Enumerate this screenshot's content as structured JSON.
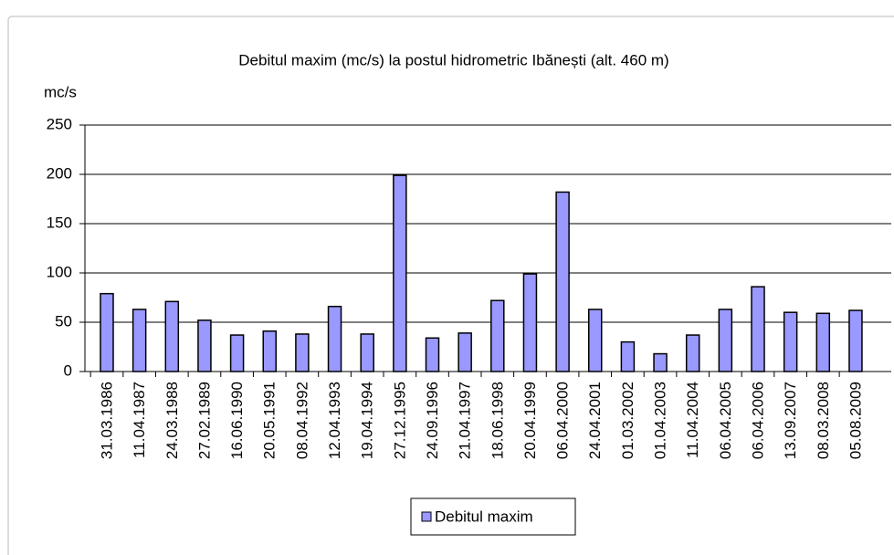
{
  "chart_data": {
    "type": "bar",
    "title": "Debitul maxim (mc/s) la postul hidrometric Ibănești (alt. 460 m)",
    "y_label": "mc/s",
    "categories": [
      "31.03.1986",
      "11.04.1987",
      "24.03.1988",
      "27.02.1989",
      "16.06.1990",
      "20.05.1991",
      "08.04.1992",
      "12.04.1993",
      "19.04.1994",
      "27.12.1995",
      "24.09.1996",
      "21.04.1997",
      "18.06.1998",
      "20.04.1999",
      "06.04.2000",
      "24.04.2001",
      "01.03.2002",
      "01.04.2003",
      "11.04.2004",
      "06.04.2005",
      "06.04.2006",
      "13.09.2007",
      "08.03.2008",
      "05.08.2009"
    ],
    "series": [
      {
        "name": "Debitul maxim",
        "color": "#9999ff",
        "values": [
          79,
          63,
          71,
          52,
          37,
          41,
          38,
          66,
          38,
          199,
          34,
          39,
          72,
          99,
          182,
          63,
          30,
          18,
          37,
          63,
          86,
          60,
          59,
          62
        ]
      }
    ],
    "ylim": [
      0,
      250
    ],
    "yticks": [
      0,
      50,
      100,
      150,
      200,
      250
    ],
    "grid": true,
    "legend": "bottom"
  }
}
